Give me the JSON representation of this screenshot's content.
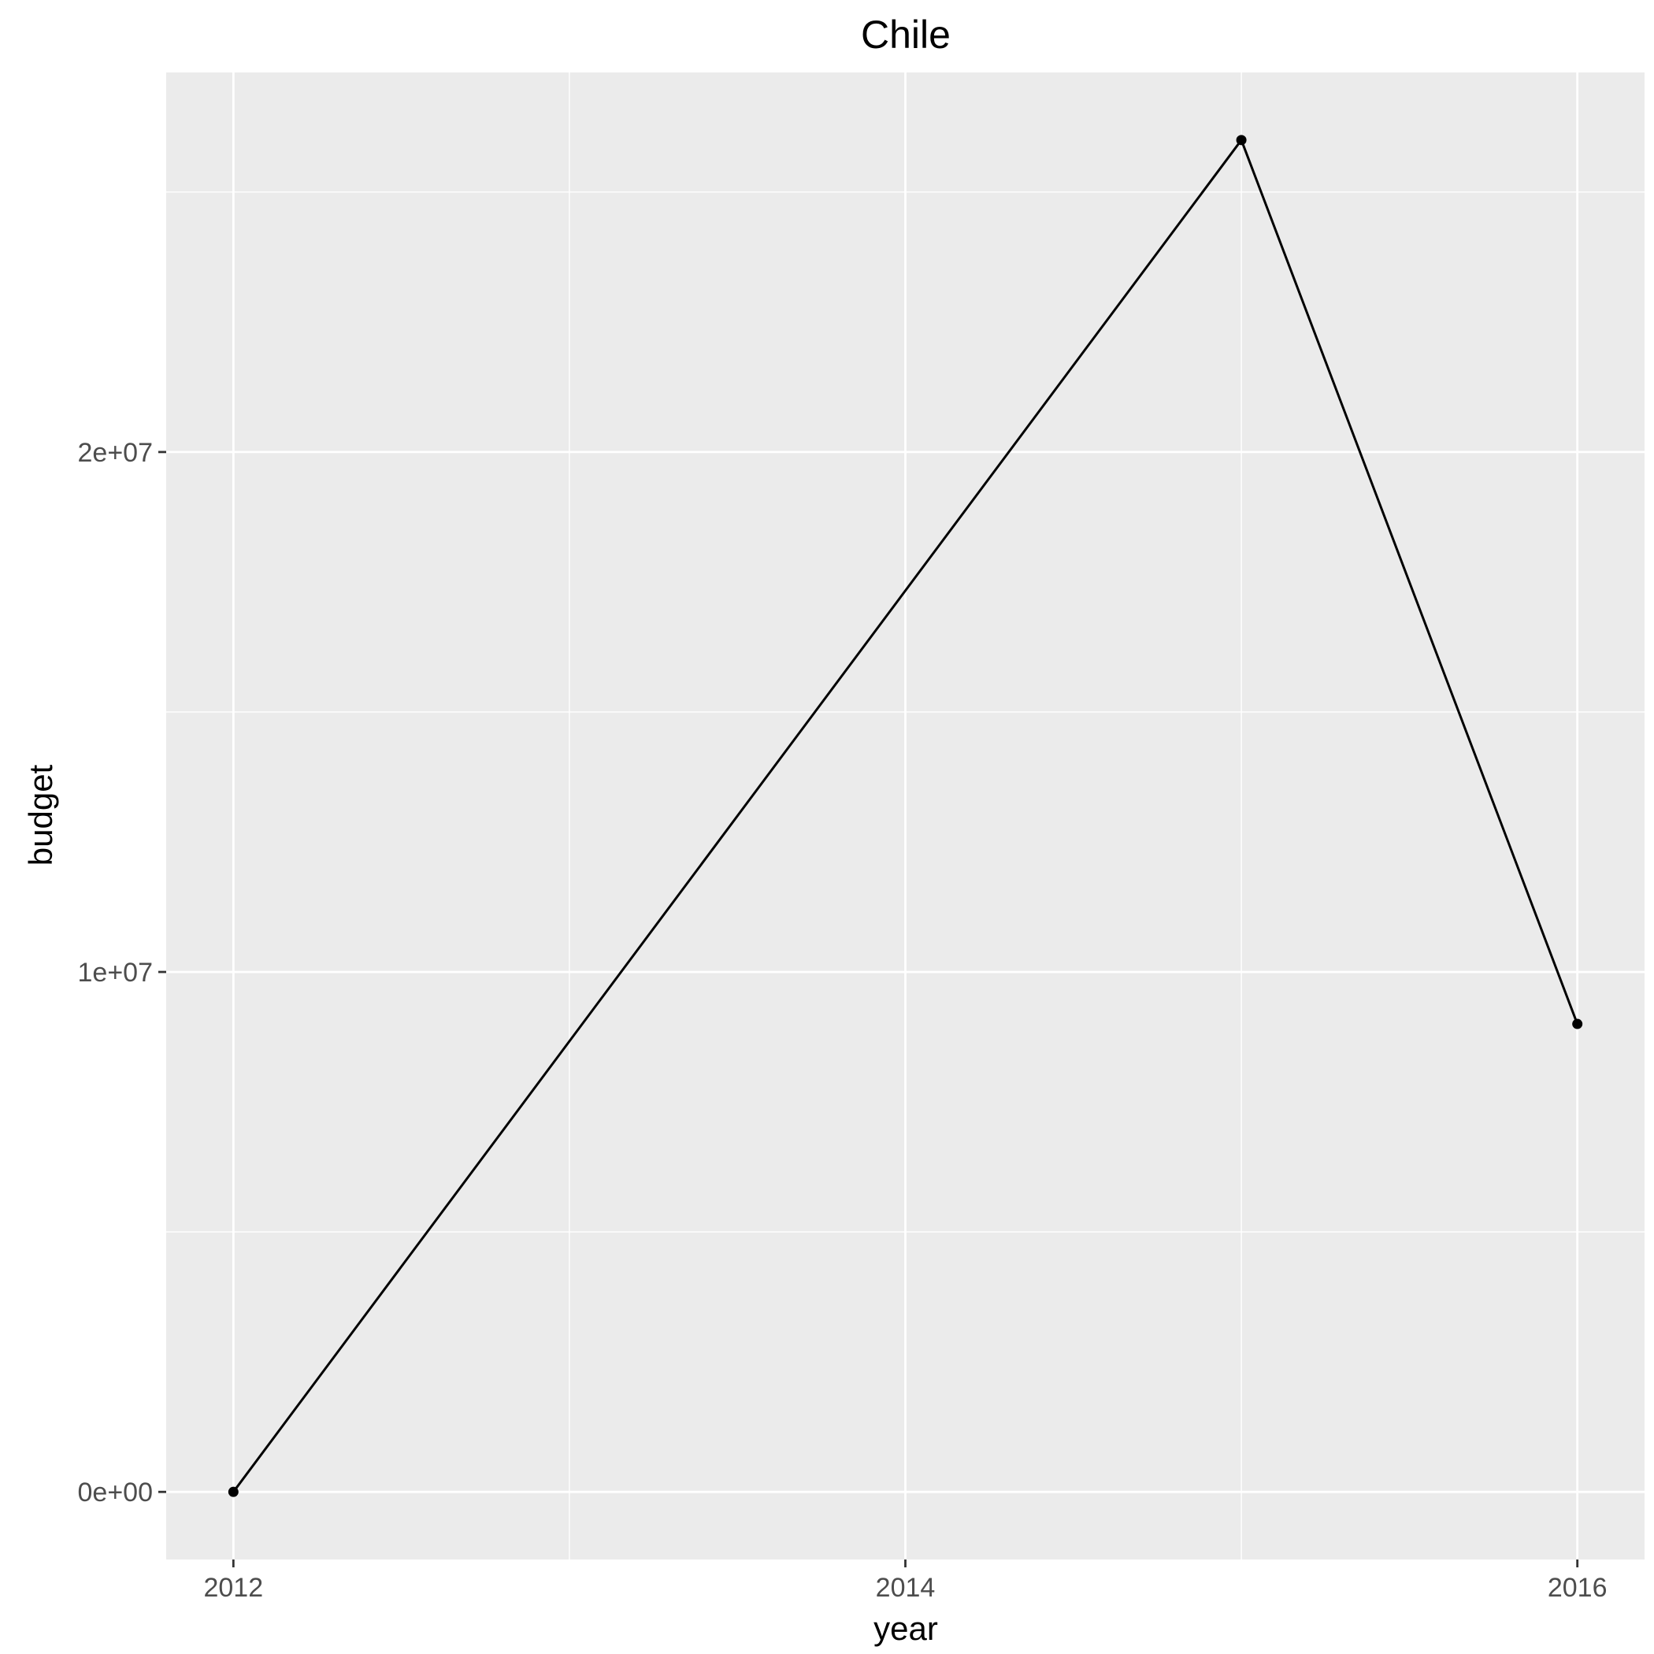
{
  "chart_data": {
    "type": "line",
    "title": "Chile",
    "xlabel": "year",
    "ylabel": "budget",
    "x": [
      2012,
      2015,
      2016
    ],
    "series": [
      {
        "values": [
          0,
          26000000,
          9000000
        ]
      }
    ],
    "xlim": [
      2011.8,
      2016.2
    ],
    "ylim": [
      -1300000,
      27300000
    ],
    "x_ticks": [
      2012,
      2014,
      2016
    ],
    "x_tick_labels": [
      "2012",
      "2014",
      "2016"
    ],
    "x_minor": [
      2013,
      2015
    ],
    "y_ticks": [
      0,
      10000000,
      20000000
    ],
    "y_tick_labels": [
      "0e+00",
      "1e+07",
      "2e+07"
    ],
    "y_minor": [
      5000000,
      15000000,
      25000000
    ],
    "grid": true,
    "legend": "none",
    "colors": {
      "panel": "#ebebeb",
      "grid": "#ffffff",
      "line": "#000000",
      "point": "#000000",
      "tick": "#333333",
      "tick_label": "#4d4d4d"
    }
  }
}
